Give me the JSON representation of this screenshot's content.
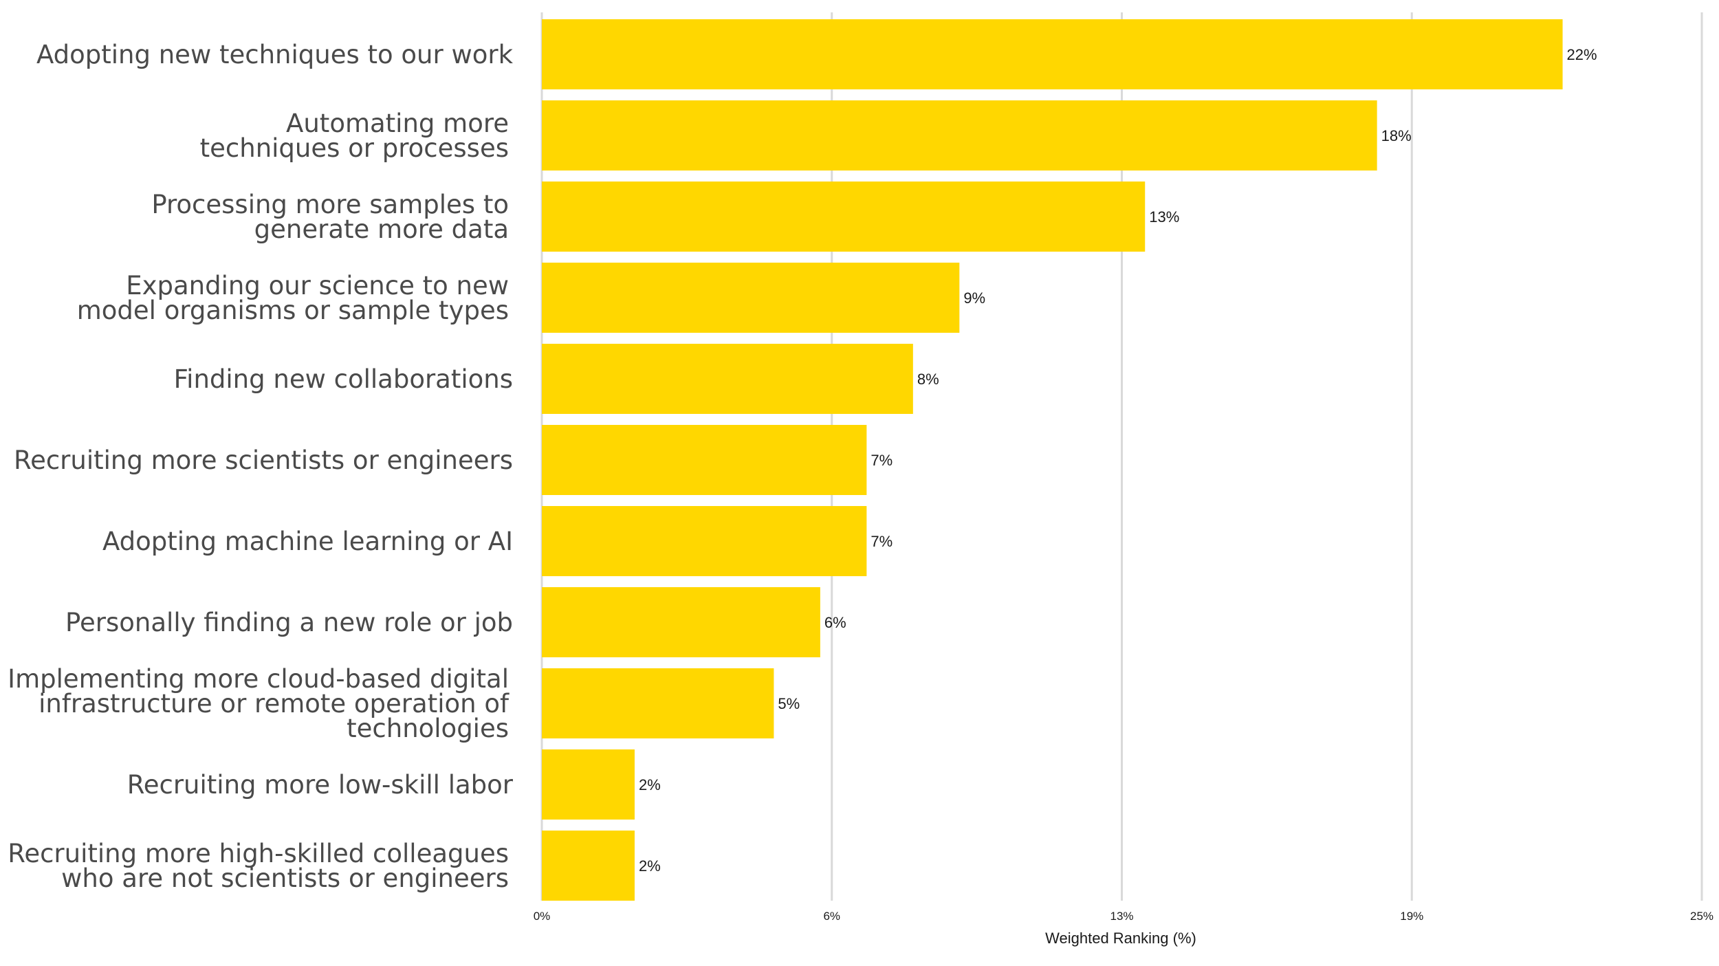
{
  "chart_data": {
    "type": "bar",
    "orientation": "horizontal",
    "categories": [
      [
        "Adopting new techniques to our work"
      ],
      [
        "Automating more",
        "techniques or processes"
      ],
      [
        "Processing more samples to",
        "generate more data"
      ],
      [
        "Expanding our science to new",
        "model organisms or sample types"
      ],
      [
        "Finding new collaborations"
      ],
      [
        "Recruiting more scientists or engineers"
      ],
      [
        "Adopting machine learning or AI"
      ],
      [
        "Personally finding a new role or job"
      ],
      [
        "Implementing more cloud-based digital",
        "infrastructure or remote operation of",
        "technologies"
      ],
      [
        "Recruiting more low-skill labor"
      ],
      [
        "Recruiting more high-skilled colleagues",
        "who are not scientists or engineers"
      ]
    ],
    "values": [
      22,
      18,
      13,
      9,
      8,
      7,
      7,
      6,
      5,
      2,
      2
    ],
    "value_labels": [
      "22%",
      "18%",
      "13%",
      "9%",
      "8%",
      "7%",
      "7%",
      "6%",
      "5%",
      "2%",
      "2%"
    ],
    "bar_color": "#FFD700",
    "x_ticks": [
      0,
      6.25,
      12.5,
      18.75,
      25
    ],
    "x_tick_labels": [
      "0%",
      "6%",
      "13%",
      "19%",
      "25%"
    ],
    "xlim": [
      0,
      25
    ],
    "xlabel": "Weighted Ranking (%)",
    "title": "",
    "grid": true,
    "grid_color": "#d9d9d9"
  }
}
